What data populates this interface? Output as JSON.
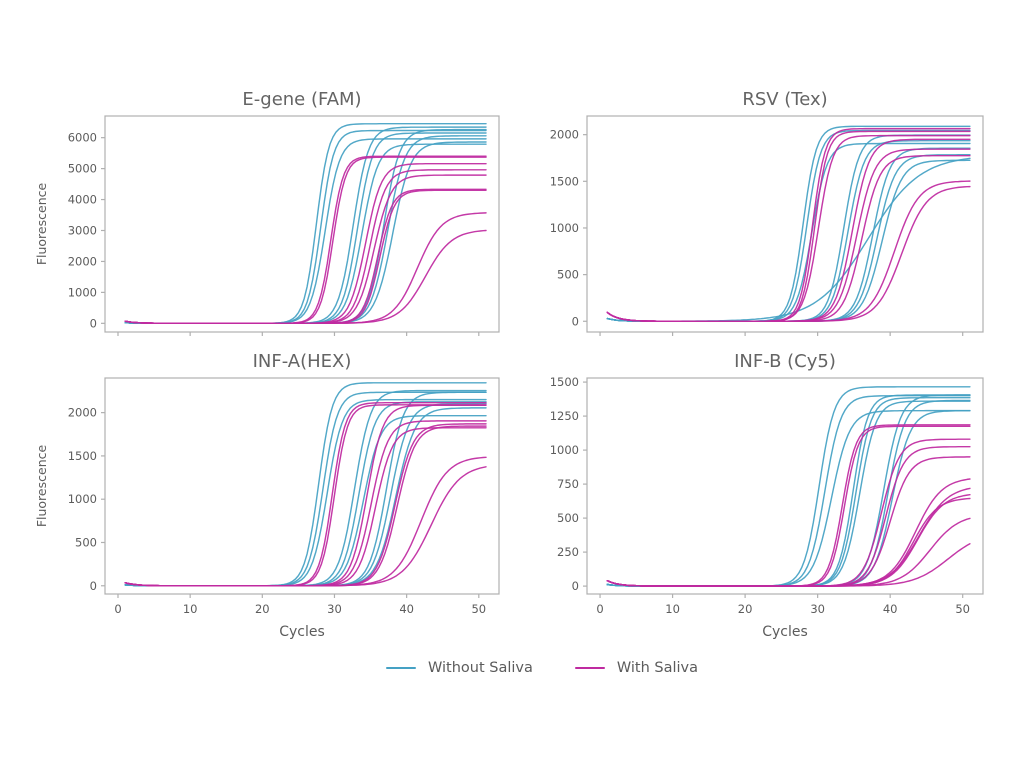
{
  "figure": {
    "background": "#ffffff",
    "kind": "qPCR amplification curves, 2x2 subplot grid"
  },
  "colors": {
    "without_saliva": "#45a1c4",
    "with_saliva": "#bf2aa0",
    "title_text": "#646464",
    "tick_text": "#5c5c5c",
    "axis_line": "#b0b0b0"
  },
  "legend": {
    "items": [
      {
        "label": "Without Saliva",
        "series_key": "without_saliva"
      },
      {
        "label": "With Saliva",
        "series_key": "with_saliva"
      }
    ]
  },
  "chart_data": [
    {
      "type": "line",
      "title": "E-gene (FAM)",
      "ylabel": "Fluorescence",
      "xlabel": "",
      "x_axis": {
        "ticks": [
          0,
          10,
          20,
          30,
          40,
          50
        ],
        "show_tick_labels": false,
        "lim": [
          -1.8,
          52.8
        ]
      },
      "y_axis": {
        "ticks": [
          0,
          1000,
          2000,
          3000,
          4000,
          5000,
          6000
        ],
        "lim": [
          -280,
          6700
        ]
      },
      "baseline_bump": 70,
      "curve_model": "logistic [ct_cycle, plateau_fluorescence, steepness]",
      "series": {
        "without_saliva": [
          [
            27.5,
            6450,
            1.15
          ],
          [
            28.1,
            6230,
            1.1
          ],
          [
            28.7,
            5960,
            1.0
          ],
          [
            32.6,
            6340,
            0.95
          ],
          [
            33.2,
            6150,
            0.95
          ],
          [
            33.8,
            5790,
            0.9
          ],
          [
            36.8,
            6260,
            0.9
          ],
          [
            37.4,
            6060,
            0.85
          ],
          [
            38.1,
            5860,
            0.8
          ]
        ],
        "with_saliva": [
          [
            29.5,
            5400,
            1.15
          ],
          [
            29.8,
            5370,
            1.15
          ],
          [
            34.3,
            5160,
            0.9
          ],
          [
            34.9,
            4960,
            0.9
          ],
          [
            35.5,
            4790,
            0.85
          ],
          [
            36.0,
            4330,
            1.0
          ],
          [
            36.3,
            4300,
            1.0
          ],
          [
            41.5,
            3580,
            0.6
          ],
          [
            42.6,
            3030,
            0.55
          ]
        ]
      }
    },
    {
      "type": "line",
      "title": "RSV (Tex)",
      "ylabel": "",
      "xlabel": "",
      "x_axis": {
        "ticks": [
          0,
          10,
          20,
          30,
          40,
          50
        ],
        "show_tick_labels": false,
        "lim": [
          -1.8,
          52.8
        ]
      },
      "y_axis": {
        "ticks": [
          0,
          500,
          1000,
          1500,
          2000
        ],
        "lim": [
          -115,
          2200
        ]
      },
      "baseline_bump": 95,
      "curve_model": "logistic [ct_cycle, plateau_fluorescence, steepness]",
      "series": {
        "without_saliva": [
          [
            28.0,
            2090,
            1.1
          ],
          [
            28.5,
            2045,
            1.05
          ],
          [
            29.2,
            1905,
            0.95
          ],
          [
            37.0,
            1780,
            0.28
          ],
          [
            33.6,
            1995,
            0.95
          ],
          [
            34.2,
            1935,
            0.9
          ],
          [
            37.6,
            1855,
            0.85
          ],
          [
            38.2,
            1785,
            0.8
          ],
          [
            38.9,
            1725,
            0.75
          ]
        ],
        "with_saliva": [
          [
            29.3,
            2065,
            1.15
          ],
          [
            29.6,
            2035,
            1.15
          ],
          [
            30.1,
            1990,
            1.0
          ],
          [
            34.8,
            1950,
            0.85
          ],
          [
            35.4,
            1845,
            0.8
          ],
          [
            36.1,
            1775,
            0.8
          ],
          [
            40.6,
            1505,
            0.6
          ],
          [
            41.6,
            1450,
            0.58
          ]
        ]
      }
    },
    {
      "type": "line",
      "title": "INF-A(HEX)",
      "ylabel": "Fluorescence",
      "xlabel": "Cycles",
      "x_axis": {
        "ticks": [
          0,
          10,
          20,
          30,
          40,
          50
        ],
        "show_tick_labels": true,
        "lim": [
          -1.8,
          52.8
        ]
      },
      "y_axis": {
        "ticks": [
          0,
          500,
          1000,
          1500,
          2000
        ],
        "lim": [
          -95,
          2400
        ]
      },
      "baseline_bump": 35,
      "curve_model": "logistic [ct_cycle, plateau_fluorescence, steepness]",
      "series": {
        "without_saliva": [
          [
            27.8,
            2345,
            1.05
          ],
          [
            28.4,
            2235,
            1.0
          ],
          [
            29.0,
            2150,
            0.95
          ],
          [
            32.8,
            2255,
            0.9
          ],
          [
            33.4,
            2125,
            0.9
          ],
          [
            34.0,
            1965,
            0.85
          ],
          [
            37.2,
            2235,
            0.85
          ],
          [
            37.8,
            2105,
            0.8
          ],
          [
            38.5,
            2055,
            0.75
          ]
        ],
        "with_saliva": [
          [
            29.7,
            2115,
            1.1
          ],
          [
            30.0,
            2090,
            1.1
          ],
          [
            34.5,
            2085,
            0.9
          ],
          [
            35.1,
            1905,
            0.85
          ],
          [
            35.7,
            1825,
            0.85
          ],
          [
            38.4,
            1870,
            0.8
          ],
          [
            38.7,
            1845,
            0.8
          ],
          [
            42.0,
            1495,
            0.55
          ],
          [
            43.4,
            1405,
            0.5
          ]
        ]
      }
    },
    {
      "type": "line",
      "title": "INF-B (Cy5)",
      "ylabel": "",
      "xlabel": "Cycles",
      "x_axis": {
        "ticks": [
          0,
          10,
          20,
          30,
          40,
          50
        ],
        "show_tick_labels": true,
        "lim": [
          -1.8,
          52.8
        ]
      },
      "y_axis": {
        "ticks": [
          0,
          250,
          500,
          750,
          1000,
          1250,
          1500
        ],
        "lim": [
          -58,
          1530
        ]
      },
      "baseline_bump": 40,
      "curve_model": "logistic [ct_cycle, plateau_fluorescence, steepness]",
      "series": {
        "without_saliva": [
          [
            30.2,
            1465,
            0.95
          ],
          [
            31.0,
            1400,
            0.9
          ],
          [
            31.9,
            1290,
            0.8
          ],
          [
            34.9,
            1405,
            1.0
          ],
          [
            35.3,
            1385,
            0.95
          ],
          [
            35.8,
            1360,
            0.9
          ],
          [
            39.1,
            1405,
            0.85
          ],
          [
            39.7,
            1365,
            0.85
          ],
          [
            40.3,
            1290,
            0.8
          ]
        ],
        "with_saliva": [
          [
            33.4,
            1185,
            1.05
          ],
          [
            33.7,
            1175,
            1.05
          ],
          [
            38.8,
            1080,
            0.8
          ],
          [
            39.4,
            1025,
            0.8
          ],
          [
            40.0,
            950,
            0.75
          ],
          [
            43.5,
            800,
            0.55
          ],
          [
            44.0,
            740,
            0.5
          ],
          [
            43.8,
            685,
            0.55
          ],
          [
            43.2,
            650,
            0.6
          ],
          [
            45.5,
            530,
            0.5
          ],
          [
            48.0,
            400,
            0.42
          ]
        ]
      }
    }
  ]
}
